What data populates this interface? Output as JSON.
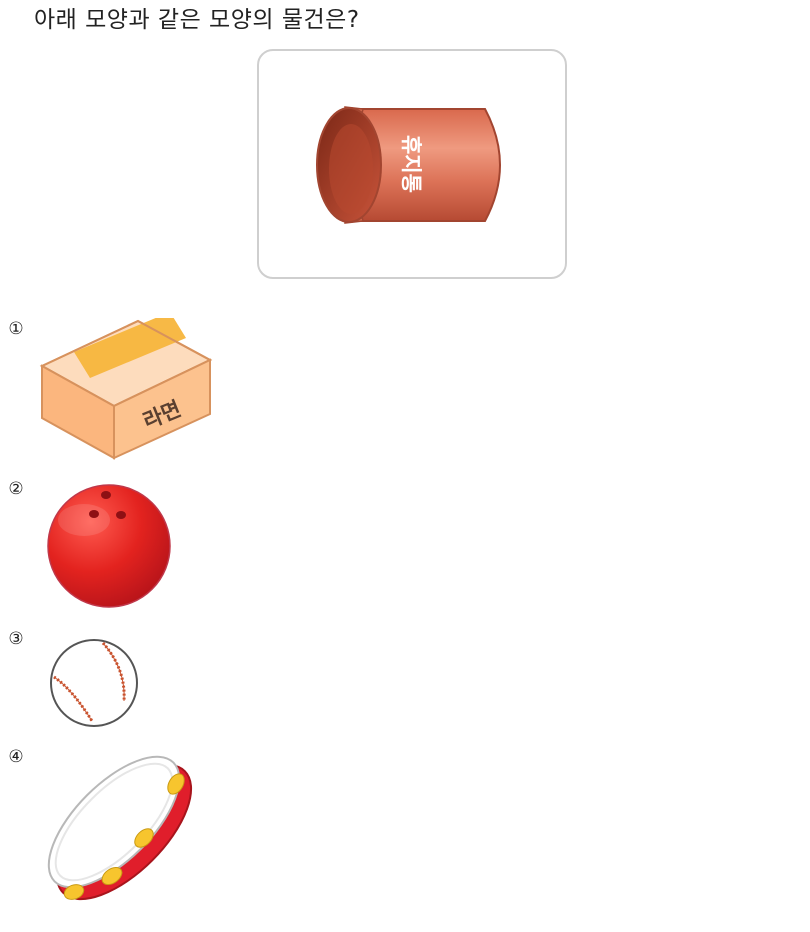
{
  "question": "아래 모양과 같은 모양의 물건은?",
  "reference": {
    "can_label": "휴지통"
  },
  "choices": [
    {
      "number": "①",
      "label": "라면"
    },
    {
      "number": "②"
    },
    {
      "number": "③"
    },
    {
      "number": "④"
    }
  ]
}
